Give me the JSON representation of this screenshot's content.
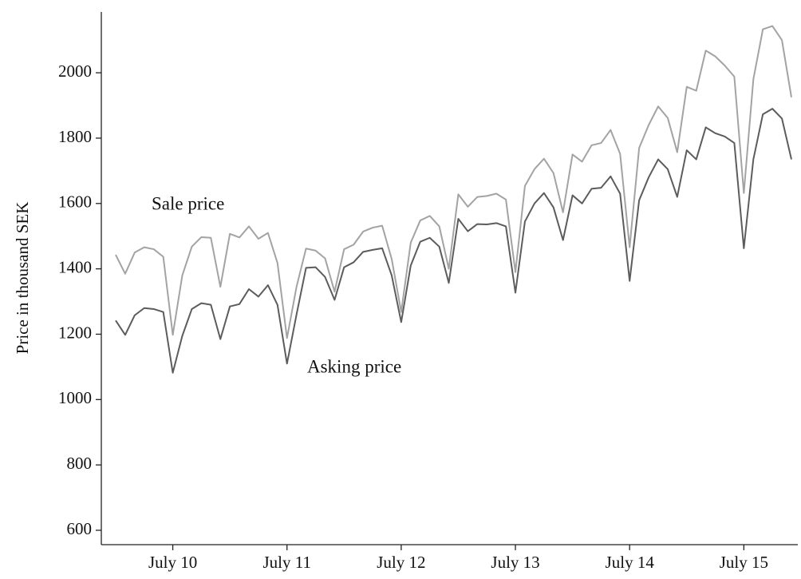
{
  "chart_data": {
    "type": "line",
    "y_label": "Price in thousand SEK",
    "annotations": [
      "Sale price",
      "Asking price"
    ],
    "categories": [
      null,
      null,
      null,
      null,
      null,
      null,
      "July 10",
      null,
      null,
      null,
      null,
      null,
      null,
      null,
      null,
      null,
      null,
      null,
      "July 11",
      null,
      null,
      null,
      null,
      null,
      null,
      null,
      null,
      null,
      null,
      null,
      "July 12",
      null,
      null,
      null,
      null,
      null,
      null,
      null,
      null,
      null,
      null,
      null,
      "July 13",
      null,
      null,
      null,
      null,
      null,
      null,
      null,
      null,
      null,
      null,
      null,
      "July 14",
      null,
      null,
      null,
      null,
      null,
      null,
      null,
      null,
      null,
      null,
      null,
      "July 15",
      null,
      null,
      null,
      null,
      null
    ],
    "series": [
      {
        "name": "Sale price",
        "color": "#a3a3a3",
        "values": [
          1443,
          1385,
          1450,
          1466,
          1460,
          1437,
          1198,
          1380,
          1468,
          1497,
          1495,
          1345,
          1507,
          1496,
          1530,
          1492,
          1510,
          1418,
          1188,
          1345,
          1462,
          1456,
          1432,
          1330,
          1460,
          1474,
          1514,
          1526,
          1532,
          1430,
          1268,
          1480,
          1548,
          1562,
          1530,
          1400,
          1628,
          1590,
          1620,
          1623,
          1630,
          1612,
          1390,
          1654,
          1705,
          1737,
          1693,
          1573,
          1750,
          1728,
          1778,
          1785,
          1825,
          1752,
          1466,
          1770,
          1840,
          1897,
          1862,
          1757,
          1957,
          1945,
          2068,
          2050,
          2022,
          1988,
          1632,
          1980,
          2133,
          2143,
          2100,
          1925
        ]
      },
      {
        "name": "Asking price",
        "color": "#5c5c5c",
        "values": [
          1242,
          1198,
          1258,
          1280,
          1277,
          1268,
          1082,
          1195,
          1277,
          1295,
          1290,
          1185,
          1285,
          1292,
          1338,
          1315,
          1350,
          1290,
          1110,
          1260,
          1403,
          1405,
          1375,
          1305,
          1405,
          1420,
          1452,
          1458,
          1463,
          1380,
          1237,
          1410,
          1483,
          1495,
          1468,
          1357,
          1553,
          1515,
          1537,
          1536,
          1540,
          1530,
          1327,
          1545,
          1600,
          1632,
          1588,
          1488,
          1625,
          1600,
          1645,
          1648,
          1683,
          1630,
          1363,
          1610,
          1680,
          1735,
          1705,
          1620,
          1763,
          1735,
          1833,
          1815,
          1805,
          1785,
          1463,
          1735,
          1873,
          1890,
          1860,
          1735
        ]
      }
    ],
    "ylim": [
      556,
      2186
    ],
    "yticks": [
      600,
      800,
      1000,
      1200,
      1400,
      1600,
      1800,
      2000
    ],
    "grid": false
  }
}
